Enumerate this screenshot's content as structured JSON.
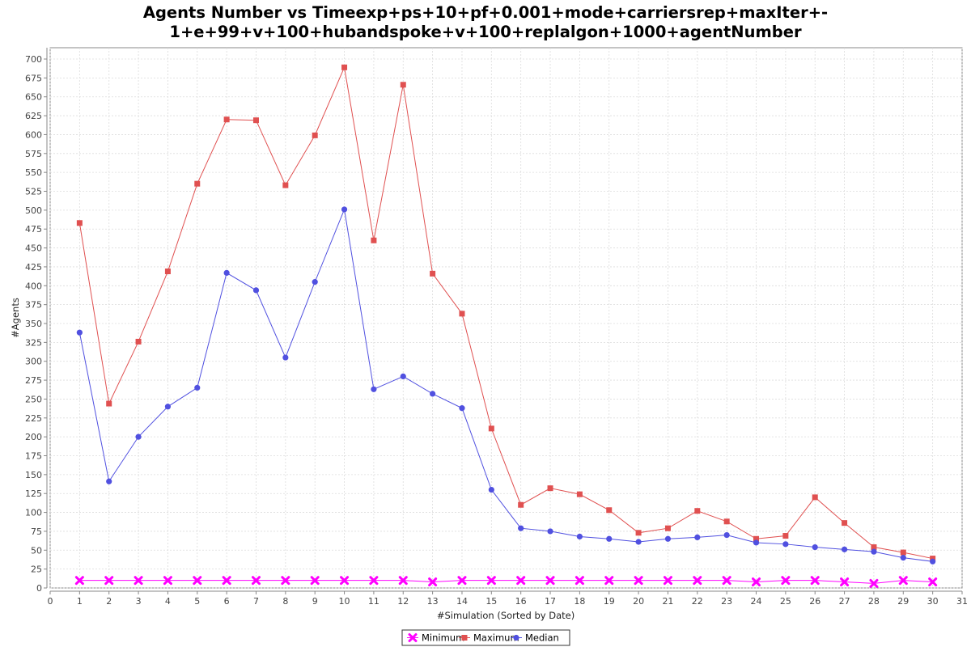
{
  "chart_data": {
    "type": "line",
    "title_lines": [
      "Agents Number vs Timeexp+ps+10+pf+0.001+mode+carriersrep+maxIter+-",
      "1+e+99+v+100+hubandspoke+v+100+replalgon+1000+agentNumber"
    ],
    "xlabel": "#Simulation (Sorted by Date)",
    "ylabel": "#Agents",
    "xlim": [
      0,
      31
    ],
    "ylim": [
      0,
      715
    ],
    "x_ticks": [
      0,
      1,
      2,
      3,
      4,
      5,
      6,
      7,
      8,
      9,
      10,
      11,
      12,
      13,
      14,
      15,
      16,
      17,
      18,
      19,
      20,
      21,
      22,
      23,
      24,
      25,
      26,
      27,
      28,
      29,
      30,
      31
    ],
    "y_ticks": [
      0,
      25,
      50,
      75,
      100,
      125,
      150,
      175,
      200,
      225,
      250,
      275,
      300,
      325,
      350,
      375,
      400,
      425,
      450,
      475,
      500,
      525,
      550,
      575,
      600,
      625,
      650,
      675,
      700
    ],
    "grid": true,
    "legend_position": "bottom",
    "x": [
      1,
      2,
      3,
      4,
      5,
      6,
      7,
      8,
      9,
      10,
      11,
      12,
      13,
      14,
      15,
      16,
      17,
      18,
      19,
      20,
      21,
      22,
      23,
      24,
      25,
      26,
      27,
      28,
      29,
      30
    ],
    "series": [
      {
        "name": "Minimum",
        "color": "#ff00ff",
        "marker": "x",
        "values": [
          10,
          10,
          10,
          10,
          10,
          10,
          10,
          10,
          10,
          10,
          10,
          10,
          8,
          10,
          10,
          10,
          10,
          10,
          10,
          10,
          10,
          10,
          10,
          8,
          10,
          10,
          8,
          6,
          10,
          8
        ]
      },
      {
        "name": "Maximum",
        "color": "#e05050",
        "marker": "square",
        "values": [
          483,
          244,
          326,
          419,
          535,
          620,
          619,
          533,
          599,
          689,
          460,
          666,
          416,
          363,
          211,
          110,
          132,
          124,
          103,
          73,
          79,
          102,
          88,
          65,
          69,
          120,
          86,
          54,
          47,
          39
        ]
      },
      {
        "name": "Median",
        "color": "#5050e0",
        "marker": "circle",
        "values": [
          338,
          141,
          200,
          240,
          265,
          417,
          394,
          305,
          405,
          501,
          263,
          280,
          257,
          238,
          130,
          79,
          75,
          68,
          65,
          61,
          65,
          67,
          70,
          60,
          58,
          54,
          51,
          48,
          40,
          35
        ]
      }
    ]
  }
}
